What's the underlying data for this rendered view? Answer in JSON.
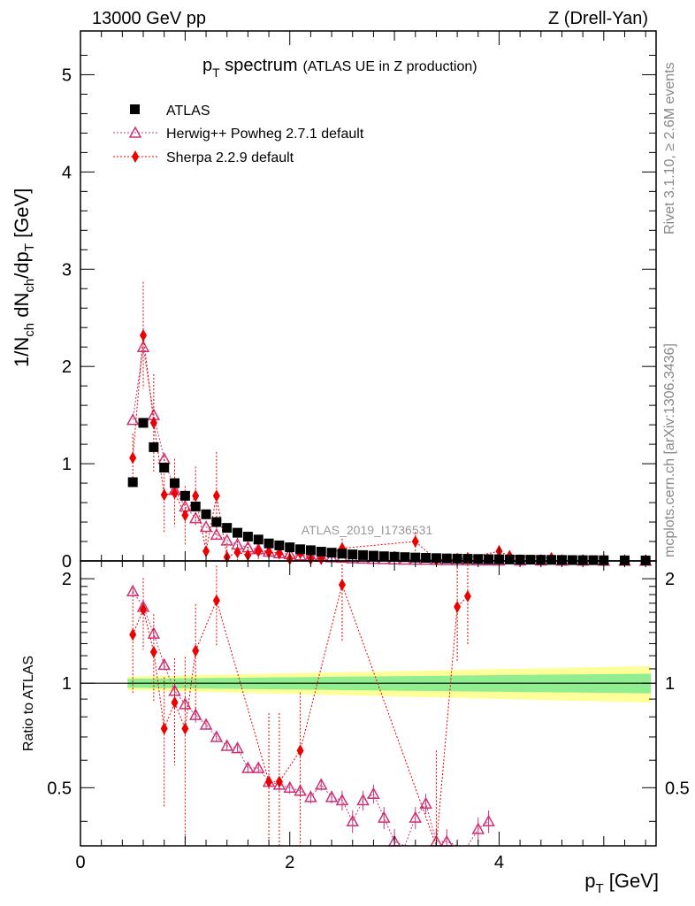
{
  "header": {
    "left": "13000 GeV pp",
    "right": "Z (Drell-Yan)"
  },
  "side_labels": {
    "rivet": "Rivet 3.1.10, ≥ 2.6M events",
    "mcplots": "mcplots.cern.ch [arXiv:1306.3436]"
  },
  "watermark": "ATLAS_2019_I1736531",
  "chart_data": [
    {
      "panel": "main",
      "type": "scatter",
      "title_main": "p",
      "title_sub": "T",
      "title_rest": " spectrum",
      "title_suffix": "(ATLAS UE in Z production)",
      "ylabel": "1/N_ch dN_ch/dp_T [GeV]",
      "xlim": [
        0,
        5.5
      ],
      "ylim": [
        0,
        5.45
      ],
      "y_ticks": [
        0,
        1,
        2,
        3,
        4,
        5
      ],
      "legend_position": "top-left",
      "series": [
        {
          "name": "ATLAS",
          "marker": "square",
          "color": "#000000",
          "x": [
            0.5,
            0.6,
            0.7,
            0.8,
            0.9,
            1.0,
            1.1,
            1.2,
            1.3,
            1.4,
            1.5,
            1.6,
            1.7,
            1.8,
            1.9,
            2.0,
            2.1,
            2.2,
            2.3,
            2.4,
            2.5,
            2.6,
            2.7,
            2.8,
            2.9,
            3.0,
            3.1,
            3.2,
            3.3,
            3.4,
            3.5,
            3.6,
            3.7,
            3.8,
            3.9,
            4.0,
            4.1,
            4.2,
            4.3,
            4.4,
            4.5,
            4.6,
            4.7,
            4.8,
            4.9,
            5.0,
            5.2,
            5.4
          ],
          "y": [
            0.81,
            1.42,
            1.17,
            0.96,
            0.8,
            0.67,
            0.56,
            0.48,
            0.4,
            0.34,
            0.29,
            0.25,
            0.22,
            0.18,
            0.16,
            0.14,
            0.12,
            0.11,
            0.095,
            0.085,
            0.075,
            0.067,
            0.06,
            0.054,
            0.048,
            0.043,
            0.039,
            0.035,
            0.032,
            0.029,
            0.026,
            0.024,
            0.022,
            0.02,
            0.018,
            0.017,
            0.015,
            0.014,
            0.013,
            0.012,
            0.011,
            0.01,
            0.009,
            0.008,
            0.008,
            0.007,
            0.006,
            0.005
          ]
        },
        {
          "name": "Herwig++ Powheg 2.7.1 default",
          "marker": "triangle-open",
          "color": "#cc3377",
          "x": [
            0.5,
            0.6,
            0.7,
            0.8,
            0.9,
            1.0,
            1.1,
            1.2,
            1.3,
            1.4,
            1.5,
            1.6,
            1.7,
            1.8,
            1.9,
            2.0,
            2.1,
            2.2,
            2.3,
            2.4,
            2.5,
            2.6,
            2.7,
            2.8,
            2.9,
            3.0,
            3.1,
            3.2,
            3.3,
            3.4,
            3.5,
            3.6,
            3.7,
            3.8,
            3.9,
            4.0,
            4.2,
            4.4,
            4.6,
            4.8,
            5.0,
            5.2,
            5.4
          ],
          "y": [
            1.45,
            2.2,
            1.5,
            1.05,
            0.73,
            0.56,
            0.44,
            0.35,
            0.27,
            0.21,
            0.17,
            0.14,
            0.12,
            0.095,
            0.08,
            0.07,
            0.057,
            0.048,
            0.046,
            0.038,
            0.033,
            0.027,
            0.024,
            0.022,
            0.019,
            0.016,
            0.014,
            0.013,
            0.012,
            0.01,
            0.009,
            0.008,
            0.007,
            0.006,
            0.006,
            0.005,
            0.004,
            0.004,
            0.003,
            0.003,
            0.002,
            0.002,
            0.002
          ]
        },
        {
          "name": "Sherpa 2.2.9 default",
          "marker": "diamond",
          "color": "#ee0000",
          "x": [
            0.5,
            0.6,
            0.7,
            0.8,
            0.9,
            1.0,
            1.1,
            1.2,
            1.3,
            1.4,
            1.5,
            1.6,
            1.7,
            1.8,
            1.9,
            2.0,
            2.1,
            2.2,
            2.3,
            2.5,
            3.2,
            3.4,
            3.6,
            3.7,
            4.0,
            4.1,
            4.5
          ],
          "y": [
            1.06,
            2.32,
            1.42,
            0.68,
            0.7,
            0.47,
            0.67,
            0.1,
            0.67,
            0.04,
            0.09,
            0.06,
            0.1,
            0.09,
            0.08,
            0.02,
            0.08,
            0.02,
            0.02,
            0.13,
            0.2,
            0.01,
            0.02,
            0.03,
            0.1,
            0.05,
            0.03
          ],
          "yerr": [
            0.25,
            0.55,
            0.5,
            0.4,
            0.35,
            0.3,
            0.3,
            0.2,
            0.45,
            0.15,
            0.15,
            0.12,
            0.12,
            0.1,
            0.1,
            0.08,
            0.08,
            0.06,
            0.06,
            0.1,
            0.1,
            0.06,
            0.06,
            0.06,
            0.06,
            0.05,
            0.04
          ]
        }
      ]
    },
    {
      "panel": "ratio",
      "type": "scatter",
      "ylabel": "Ratio to ATLAS",
      "xlabel": "p_T [GeV]",
      "xlim": [
        0,
        5.5
      ],
      "ylim": [
        0.34,
        2.25
      ],
      "x_ticks": [
        0,
        2,
        4
      ],
      "y_ticks": [
        0.5,
        1,
        2
      ],
      "band_inner": {
        "x": [
          0.45,
          5.45
        ],
        "half_width": [
          0.03,
          0.065
        ],
        "color": "#90ee90"
      },
      "band_outer": {
        "x": [
          0.45,
          5.45
        ],
        "half_width": [
          0.045,
          0.12
        ],
        "color": "#ffff99"
      },
      "series": [
        {
          "name": "Herwig++ Powheg 2.7.1 default",
          "x": [
            0.5,
            0.6,
            0.7,
            0.8,
            0.9,
            1.0,
            1.1,
            1.2,
            1.3,
            1.4,
            1.5,
            1.6,
            1.7,
            1.8,
            1.9,
            2.0,
            2.1,
            2.2,
            2.3,
            2.4,
            2.5,
            2.6,
            2.7,
            2.8,
            2.9,
            3.0,
            3.1,
            3.2,
            3.3,
            3.4,
            3.5,
            3.6,
            3.7,
            3.8,
            3.9
          ],
          "y": [
            1.84,
            1.66,
            1.39,
            1.13,
            0.95,
            0.87,
            0.81,
            0.76,
            0.7,
            0.66,
            0.65,
            0.57,
            0.57,
            0.52,
            0.51,
            0.5,
            0.49,
            0.47,
            0.51,
            0.47,
            0.46,
            0.4,
            0.46,
            0.48,
            0.41,
            0.35,
            0.3,
            0.41,
            0.45,
            0.35,
            0.35,
            0.32,
            0.3,
            0.38,
            0.4
          ],
          "yerr": [
            0.04,
            0.04,
            0.04,
            0.04,
            0.04,
            0.04,
            0.04,
            0.02,
            0.02,
            0.02,
            0.02,
            0.02,
            0.02,
            0.02,
            0.02,
            0.02,
            0.02,
            0.02,
            0.02,
            0.02,
            0.03,
            0.03,
            0.03,
            0.03,
            0.03,
            0.03,
            0.03,
            0.03,
            0.03,
            0.03,
            0.03,
            0.03,
            0.03,
            0.03,
            0.03
          ]
        },
        {
          "name": "Sherpa 2.2.9 default",
          "x": [
            0.5,
            0.6,
            0.7,
            0.8,
            0.9,
            1.0,
            1.1,
            1.3,
            1.8,
            1.9,
            2.1,
            2.5,
            3.4,
            3.6,
            3.7
          ],
          "y": [
            1.38,
            1.63,
            1.23,
            0.74,
            0.88,
            0.74,
            1.24,
            1.73,
            0.52,
            0.52,
            0.64,
            1.92,
            0.34,
            1.66,
            1.78
          ],
          "yerr": [
            0.45,
            0.38,
            0.35,
            0.3,
            0.3,
            0.45,
            0.45,
            0.45,
            0.3,
            0.3,
            0.3,
            0.6,
            0.3,
            0.5,
            0.5
          ]
        }
      ]
    }
  ]
}
